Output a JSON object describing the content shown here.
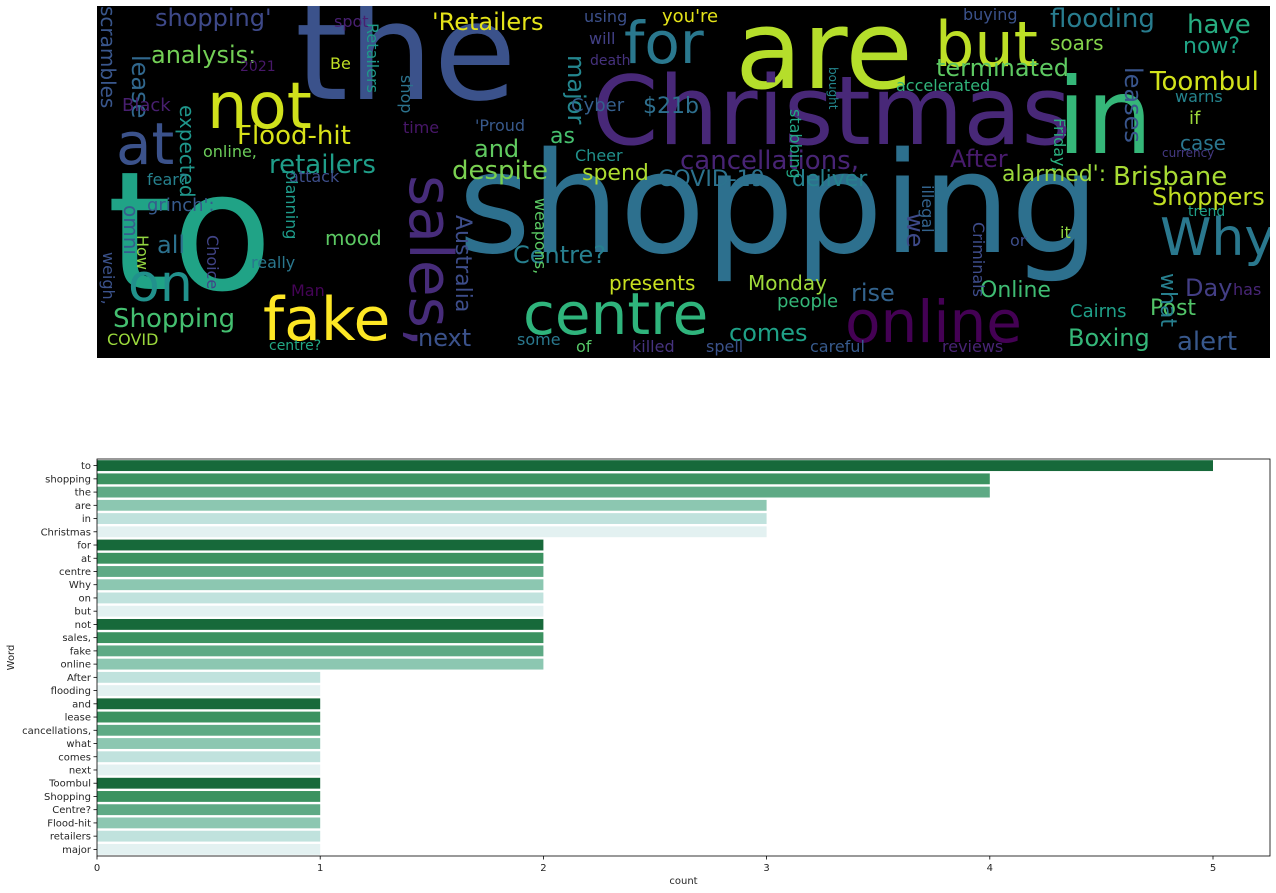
{
  "wordcloud": {
    "background": "#000000",
    "words": [
      {
        "text": "to",
        "color": "#20a386"
      },
      {
        "text": "shopping",
        "color": "#2d708e"
      },
      {
        "text": "the",
        "color": "#3b528b"
      },
      {
        "text": "are",
        "color": "#b5de2b"
      },
      {
        "text": "Christmas",
        "color": "#482878"
      },
      {
        "text": "in",
        "color": "#35b779"
      },
      {
        "text": "not",
        "color": "#d0e11c"
      },
      {
        "text": "for",
        "color": "#2a788e"
      },
      {
        "text": "but",
        "color": "#bddf26"
      },
      {
        "text": "at",
        "color": "#3b528b"
      },
      {
        "text": "sales,",
        "color": "#472c7a"
      },
      {
        "text": "fake",
        "color": "#fde725"
      },
      {
        "text": "centre",
        "color": "#2fb47c"
      },
      {
        "text": "online",
        "color": "#440154"
      },
      {
        "text": "Why",
        "color": "#2a788e"
      },
      {
        "text": "on",
        "color": "#21918c"
      },
      {
        "text": "Flood-hit",
        "color": "#d8e219"
      },
      {
        "text": "'Retailers",
        "color": "#e5e419"
      },
      {
        "text": "shopping'",
        "color": "#3e4989"
      },
      {
        "text": "flooding",
        "color": "#287c8e"
      },
      {
        "text": "have",
        "color": "#27ad81"
      },
      {
        "text": "terminated",
        "color": "#5ec962"
      },
      {
        "text": "Toombul",
        "color": "#d2e21b"
      },
      {
        "text": "cancellations,",
        "color": "#482475"
      },
      {
        "text": "After",
        "color": "#481b6d"
      },
      {
        "text": "Brisbane",
        "color": "#a8db34"
      },
      {
        "text": "Shoppers",
        "color": "#c2df23"
      },
      {
        "text": "retailers",
        "color": "#1f9e89"
      },
      {
        "text": "despite",
        "color": "#7ad151"
      },
      {
        "text": "and",
        "color": "#60ca60"
      },
      {
        "text": "analysis:",
        "color": "#73d056"
      },
      {
        "text": "lease",
        "color": "#31688e"
      },
      {
        "text": "major",
        "color": "#24868e"
      },
      {
        "text": "soars",
        "color": "#84d44b"
      },
      {
        "text": "now?",
        "color": "#20a486"
      },
      {
        "text": "leases",
        "color": "#39558c"
      },
      {
        "text": "alarmed':",
        "color": "#9bd93c"
      },
      {
        "text": "COVID-19",
        "color": "#2c728e"
      },
      {
        "text": "deliver",
        "color": "#26828e"
      },
      {
        "text": "Shopping",
        "color": "#44bf70"
      },
      {
        "text": "next",
        "color": "#3b528b"
      },
      {
        "text": "Centre?",
        "color": "#277f8e"
      },
      {
        "text": "comes",
        "color": "#1fa187"
      },
      {
        "text": "Post",
        "color": "#52c569"
      },
      {
        "text": "Boxing",
        "color": "#35b779"
      },
      {
        "text": "alert",
        "color": "#38588c"
      },
      {
        "text": "Online",
        "color": "#3fbc73"
      },
      {
        "text": "rise",
        "color": "#33638d"
      },
      {
        "text": "Day",
        "color": "#433e85"
      },
      {
        "text": "what",
        "color": "#277f8e"
      },
      {
        "text": "we",
        "color": "#3e4a89"
      },
      {
        "text": "all",
        "color": "#2c718e"
      },
      {
        "text": "presents",
        "color": "#c8e020"
      },
      {
        "text": "Monday",
        "color": "#9fda3a"
      },
      {
        "text": "spend",
        "color": "#addc30"
      },
      {
        "text": "as",
        "color": "#46c06f"
      },
      {
        "text": "$21b",
        "color": "#2e6f8e"
      },
      {
        "text": "Australia",
        "color": "#3d4d8a"
      },
      {
        "text": "expected",
        "color": "#1f968b"
      },
      {
        "text": "omni",
        "color": "#365c8d"
      },
      {
        "text": "scrambles",
        "color": "#39568c"
      },
      {
        "text": "case",
        "color": "#2a768e"
      },
      {
        "text": "if",
        "color": "#9dd93b"
      },
      {
        "text": "warns",
        "color": "#25848e"
      },
      {
        "text": "accelerated",
        "color": "#31b57b"
      },
      {
        "text": "stabbing",
        "color": "#22a785"
      },
      {
        "text": "Cyber",
        "color": "#355f8d"
      },
      {
        "text": "Cheer",
        "color": "#21918c"
      },
      {
        "text": "'Proud",
        "color": "#38598c"
      },
      {
        "text": "Retailers",
        "color": "#1f998a"
      },
      {
        "text": "shop",
        "color": "#2c738e"
      },
      {
        "text": "Be",
        "color": "#c0df25"
      },
      {
        "text": "spot",
        "color": "#482071"
      },
      {
        "text": "using",
        "color": "#3c508b"
      },
      {
        "text": "will",
        "color": "#424086"
      },
      {
        "text": "death",
        "color": "#46327e"
      },
      {
        "text": "you're",
        "color": "#e5e419"
      },
      {
        "text": "buying",
        "color": "#3b528b"
      },
      {
        "text": "2021",
        "color": "#48186a"
      },
      {
        "text": "Black",
        "color": "#481f70"
      },
      {
        "text": "time",
        "color": "#481769"
      },
      {
        "text": "online,",
        "color": "#6ccd5a"
      },
      {
        "text": "fear?",
        "color": "#26818e"
      },
      {
        "text": "attack",
        "color": "#3d4e8a"
      },
      {
        "text": "grinch':",
        "color": "#375b8d"
      },
      {
        "text": "How",
        "color": "#93d741"
      },
      {
        "text": "mood",
        "color": "#5cc863"
      },
      {
        "text": "weigh,",
        "color": "#3b528b"
      },
      {
        "text": "Choice",
        "color": "#414487"
      },
      {
        "text": "planning",
        "color": "#1e9b8a"
      },
      {
        "text": "really",
        "color": "#2a778e"
      },
      {
        "text": "Man",
        "color": "#450457"
      },
      {
        "text": "weapons,",
        "color": "#5ac864"
      },
      {
        "text": "illegal",
        "color": "#33638d"
      },
      {
        "text": "Criminals",
        "color": "#3e4c8a"
      },
      {
        "text": "bought",
        "color": "#24878e"
      },
      {
        "text": "Friday,",
        "color": "#2ab07f"
      },
      {
        "text": "currency",
        "color": "#443983"
      },
      {
        "text": "trend",
        "color": "#1f9f88"
      },
      {
        "text": "it",
        "color": "#90d743"
      },
      {
        "text": "or",
        "color": "#3d4e8a"
      },
      {
        "text": "has",
        "color": "#482677"
      },
      {
        "text": "people",
        "color": "#35b779"
      },
      {
        "text": "Cairns",
        "color": "#1f9f88"
      },
      {
        "text": "COVID",
        "color": "#9bd93c"
      },
      {
        "text": "centre?",
        "color": "#22a884"
      },
      {
        "text": "some",
        "color": "#2a788e"
      },
      {
        "text": "of",
        "color": "#56c667"
      },
      {
        "text": "killed",
        "color": "#46337f"
      },
      {
        "text": "spell",
        "color": "#3b528b"
      },
      {
        "text": "careful",
        "color": "#375a8c"
      },
      {
        "text": "reviews",
        "color": "#482475"
      }
    ]
  },
  "chart_data": {
    "type": "bar",
    "orientation": "horizontal",
    "categories": [
      "to",
      "shopping",
      "the",
      "are",
      "in",
      "Christmas",
      "for",
      "at",
      "centre",
      "Why",
      "on",
      "but",
      "not",
      "sales,",
      "fake",
      "online",
      "After",
      "flooding",
      "and",
      "lease",
      "cancellations,",
      "what",
      "comes",
      "next",
      "Toombul",
      "Shopping",
      "Centre?",
      "Flood-hit",
      "retailers",
      "major"
    ],
    "values": [
      5,
      4,
      4,
      3,
      3,
      3,
      2,
      2,
      2,
      2,
      2,
      2,
      2,
      2,
      2,
      2,
      1,
      1,
      1,
      1,
      1,
      1,
      1,
      1,
      1,
      1,
      1,
      1,
      1,
      1
    ],
    "xlabel": "count",
    "ylabel": "Word",
    "xlim": [
      0,
      5.25
    ],
    "xticks": [
      "0",
      "1",
      "2",
      "3",
      "4",
      "5"
    ],
    "palette": [
      "#17693a",
      "#3b9260",
      "#5eaa85",
      "#8cc7b1",
      "#c0e2dd",
      "#e3f1f1"
    ],
    "grid": false
  }
}
